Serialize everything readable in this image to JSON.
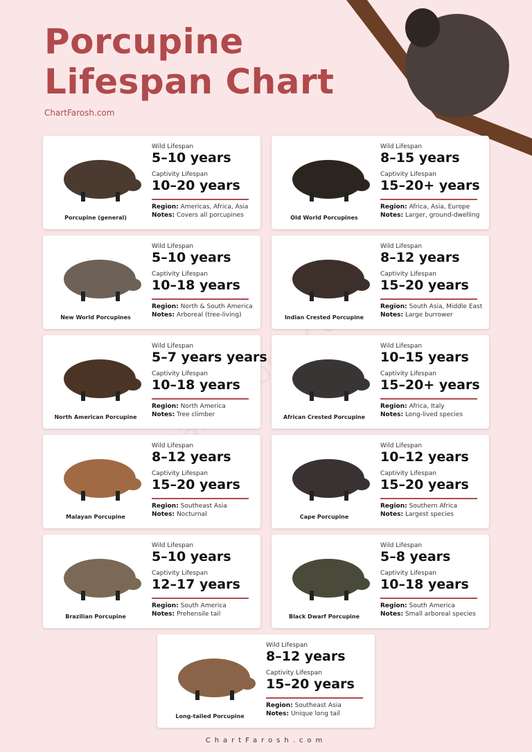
{
  "header": {
    "title_lines": [
      "Porcupine",
      "Lifespan Chart"
    ],
    "source": "ChartFarosh.com"
  },
  "labels": {
    "wild": "Wild Lifespan",
    "captivity": "Captivity Lifespan",
    "region": "Region:",
    "notes": "Notes:"
  },
  "cards": [
    {
      "name": "Porcupine (general)",
      "wild": "5–10 years",
      "captivity": "10–20 years",
      "region": "Americas, Africa, Asia",
      "notes": "Covers all porcupines"
    },
    {
      "name": "Old World Porcupines",
      "wild": "8–15 years",
      "captivity": "15–20+ years",
      "region": "Africa, Asia, Europe",
      "notes": "Larger, ground-dwelling"
    },
    {
      "name": "New World Porcupines",
      "wild": "5–10 years",
      "captivity": "10–18 years",
      "region": "North & South America",
      "notes": "Arboreal (tree-living)"
    },
    {
      "name": "Indian Crested Porcupine",
      "wild": "8–12 years",
      "captivity": "15–20 years",
      "region": "South Asia, Middle East",
      "notes": "Large burrower"
    },
    {
      "name": "North American Porcupine",
      "wild": "5–7 years years",
      "captivity": "10–18 years",
      "region": "North America",
      "notes": "Tree climber"
    },
    {
      "name": "African Crested Porcupine",
      "wild": "10–15 years",
      "captivity": "15–20+ years",
      "region": "Africa, Italy",
      "notes": "Long-lived species"
    },
    {
      "name": "Malayan Porcupine",
      "wild": "8–12 years",
      "captivity": "15–20 years",
      "region": "Southeast Asia",
      "notes": "Nocturnal"
    },
    {
      "name": "Cape Porcupine",
      "wild": "10–12 years",
      "captivity": "15–20 years",
      "region": "Southern Africa",
      "notes": "Largest species"
    },
    {
      "name": "Brazilian Porcupine",
      "wild": "5–10 years",
      "captivity": "12–17 years",
      "region": "South America",
      "notes": "Prehensile tail"
    },
    {
      "name": "Black Dwarf Porcupine",
      "wild": "5–8 years",
      "captivity": "10–18 years",
      "region": "South America",
      "notes": "Small arboreal species"
    },
    {
      "name": "Long-tailed Porcupine",
      "wild": "8–12 years",
      "captivity": "15–20 years",
      "region": "Southeast Asia",
      "notes": "Unique long tail"
    }
  ],
  "footer": "ChartFarosh.com"
}
